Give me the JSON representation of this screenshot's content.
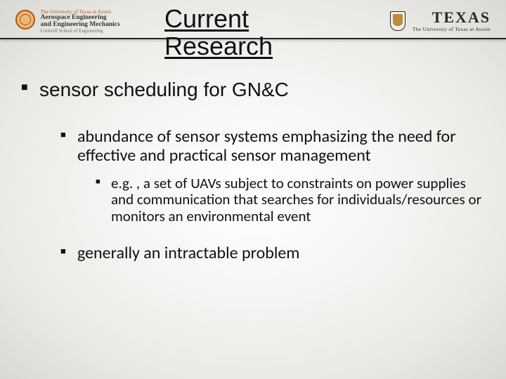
{
  "header": {
    "left_logo": {
      "line1": "The University of Texas at Austin",
      "line2": "Aerospace Engineering\nand Engineering Mechanics",
      "line3": "Cockrell School of Engineering"
    },
    "right_logo": {
      "wordmark": "TEXAS",
      "sub": "The University of Texas at Austin"
    }
  },
  "title": "Current\nResearch",
  "bullets": {
    "l1": "sensor scheduling for GN&C",
    "l2a": "abundance of sensor systems emphasizing the need for effective and practical sensor management",
    "l3a": "e.g. , a set of UAVs subject to constraints on power supplies and communication that searches for individuals/resources or monitors an environmental event",
    "l2b": "generally an intractable problem"
  },
  "style": {
    "background_gradient": [
      "#ffffff",
      "#e8e8e4",
      "#d8d8d4"
    ],
    "title_fontsize": 36,
    "l1_fontsize": 28,
    "l2_fontsize": 24,
    "l3_fontsize": 21,
    "text_color": "#111111",
    "bullet_glyph": "■",
    "rule_color": "#222222"
  }
}
